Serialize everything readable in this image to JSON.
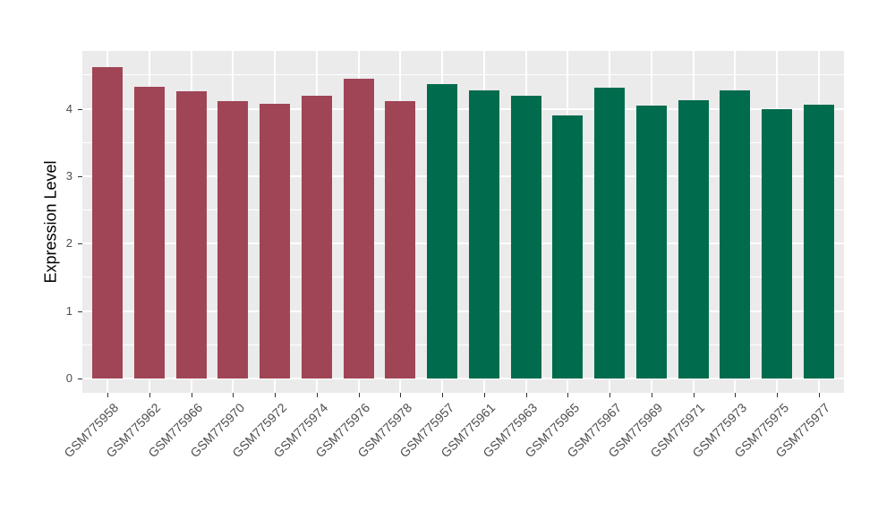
{
  "chart_data": {
    "type": "bar",
    "title": "",
    "xlabel": "",
    "ylabel": "Expression Level",
    "y_ticks": [
      0,
      1,
      2,
      3,
      4
    ],
    "ylim": [
      -0.23,
      4.85
    ],
    "grid": true,
    "legend": false,
    "panel_bg": "#EBEBEB",
    "grid_color": "#FFFFFF",
    "tick_color": "#333333",
    "tick_label_color": "#4D4D4D",
    "groups": [
      {
        "name": "group-red",
        "color": "#A04556"
      },
      {
        "name": "group-green",
        "color": "#016B4D"
      }
    ],
    "categories": [
      "GSM775958",
      "GSM775962",
      "GSM775966",
      "GSM775970",
      "GSM775972",
      "GSM775974",
      "GSM775976",
      "GSM775978",
      "GSM775957",
      "GSM775961",
      "GSM775963",
      "GSM775965",
      "GSM775967",
      "GSM775969",
      "GSM775971",
      "GSM775973",
      "GSM775975",
      "GSM775977"
    ],
    "values": [
      4.62,
      4.32,
      4.26,
      4.11,
      4.08,
      4.2,
      4.45,
      4.12,
      4.37,
      4.27,
      4.2,
      3.9,
      4.31,
      4.05,
      4.13,
      4.28,
      4.0,
      4.06
    ],
    "bar_group_index": [
      0,
      0,
      0,
      0,
      0,
      0,
      0,
      0,
      1,
      1,
      1,
      1,
      1,
      1,
      1,
      1,
      1,
      1
    ]
  }
}
